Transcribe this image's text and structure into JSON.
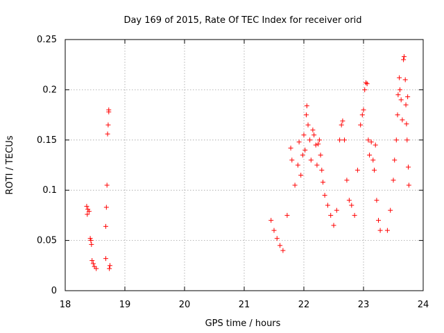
{
  "chart_data": {
    "type": "scatter",
    "title": "Day 169 of 2015, Rate Of TEC Index for receiver orid",
    "xlabel": "GPS time / hours",
    "ylabel": "ROTI / TECUs",
    "xlim": [
      18,
      24
    ],
    "ylim": [
      0,
      0.25
    ],
    "xticks": [
      18,
      19,
      20,
      21,
      22,
      23,
      24
    ],
    "xtick_labels": [
      "18",
      "19",
      "20",
      "21",
      "22",
      "23",
      "24"
    ],
    "yticks": [
      0,
      0.05,
      0.1,
      0.15,
      0.2,
      0.25
    ],
    "ytick_labels": [
      "0",
      "0.05",
      "0.1",
      "0.15",
      "0.2",
      "0.25"
    ],
    "grid": true,
    "marker": "+",
    "color": "#ff0000",
    "series": [
      {
        "name": "ROTI",
        "points": [
          [
            18.36,
            0.084
          ],
          [
            18.37,
            0.076
          ],
          [
            18.38,
            0.081
          ],
          [
            18.4,
            0.079
          ],
          [
            18.42,
            0.052
          ],
          [
            18.43,
            0.05
          ],
          [
            18.44,
            0.046
          ],
          [
            18.45,
            0.03
          ],
          [
            18.47,
            0.027
          ],
          [
            18.49,
            0.024
          ],
          [
            18.52,
            0.022
          ],
          [
            18.68,
            0.064
          ],
          [
            18.69,
            0.083
          ],
          [
            18.7,
            0.105
          ],
          [
            18.71,
            0.156
          ],
          [
            18.72,
            0.165
          ],
          [
            18.73,
            0.18
          ],
          [
            18.73,
            0.178
          ],
          [
            18.68,
            0.032
          ],
          [
            18.75,
            0.025
          ],
          [
            18.74,
            0.022
          ],
          [
            21.45,
            0.07
          ],
          [
            21.5,
            0.06
          ],
          [
            21.55,
            0.052
          ],
          [
            21.6,
            0.045
          ],
          [
            21.65,
            0.04
          ],
          [
            21.72,
            0.075
          ],
          [
            21.78,
            0.142
          ],
          [
            21.8,
            0.13
          ],
          [
            21.85,
            0.105
          ],
          [
            21.9,
            0.125
          ],
          [
            21.92,
            0.148
          ],
          [
            21.95,
            0.115
          ],
          [
            21.98,
            0.135
          ],
          [
            22.0,
            0.155
          ],
          [
            22.02,
            0.14
          ],
          [
            22.04,
            0.175
          ],
          [
            22.05,
            0.184
          ],
          [
            22.07,
            0.165
          ],
          [
            22.1,
            0.15
          ],
          [
            22.12,
            0.13
          ],
          [
            22.15,
            0.16
          ],
          [
            22.17,
            0.155
          ],
          [
            22.2,
            0.145
          ],
          [
            22.22,
            0.125
          ],
          [
            22.24,
            0.146
          ],
          [
            22.26,
            0.15
          ],
          [
            22.28,
            0.135
          ],
          [
            22.3,
            0.12
          ],
          [
            22.32,
            0.108
          ],
          [
            22.35,
            0.095
          ],
          [
            22.4,
            0.085
          ],
          [
            22.45,
            0.075
          ],
          [
            22.5,
            0.065
          ],
          [
            22.55,
            0.08
          ],
          [
            22.6,
            0.15
          ],
          [
            22.63,
            0.165
          ],
          [
            22.65,
            0.169
          ],
          [
            22.68,
            0.15
          ],
          [
            22.72,
            0.11
          ],
          [
            22.76,
            0.09
          ],
          [
            22.8,
            0.085
          ],
          [
            22.85,
            0.075
          ],
          [
            22.9,
            0.12
          ],
          [
            22.95,
            0.165
          ],
          [
            22.98,
            0.175
          ],
          [
            23.0,
            0.18
          ],
          [
            23.02,
            0.2
          ],
          [
            23.04,
            0.207
          ],
          [
            23.06,
            0.206
          ],
          [
            23.08,
            0.15
          ],
          [
            23.1,
            0.135
          ],
          [
            23.13,
            0.148
          ],
          [
            23.16,
            0.13
          ],
          [
            23.18,
            0.12
          ],
          [
            23.2,
            0.145
          ],
          [
            23.22,
            0.09
          ],
          [
            23.25,
            0.07
          ],
          [
            23.28,
            0.06
          ],
          [
            23.4,
            0.06
          ],
          [
            23.45,
            0.08
          ],
          [
            23.5,
            0.11
          ],
          [
            23.52,
            0.13
          ],
          [
            23.55,
            0.15
          ],
          [
            23.57,
            0.175
          ],
          [
            23.58,
            0.195
          ],
          [
            23.6,
            0.212
          ],
          [
            23.61,
            0.2
          ],
          [
            23.63,
            0.19
          ],
          [
            23.65,
            0.17
          ],
          [
            23.67,
            0.23
          ],
          [
            23.68,
            0.233
          ],
          [
            23.7,
            0.21
          ],
          [
            23.71,
            0.185
          ],
          [
            23.72,
            0.166
          ],
          [
            23.73,
            0.15
          ],
          [
            23.74,
            0.193
          ],
          [
            23.75,
            0.123
          ],
          [
            23.76,
            0.105
          ]
        ]
      }
    ]
  }
}
